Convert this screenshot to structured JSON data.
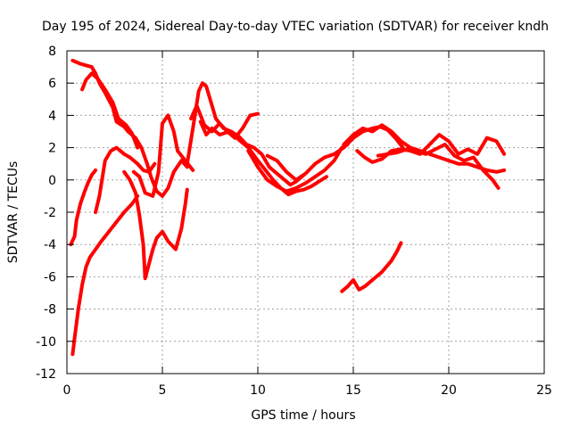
{
  "chart_data": {
    "type": "line",
    "title": "Day 195 of 2024, Sidereal Day-to-day VTEC variation (SDTVAR) for receiver kndh",
    "xlabel": "GPS time / hours",
    "ylabel": "SDTVAR / TECUs",
    "xlim": [
      0,
      25
    ],
    "ylim": [
      -12,
      8
    ],
    "xticks": [
      0,
      5,
      10,
      15,
      20,
      25
    ],
    "yticks": [
      -12,
      -10,
      -8,
      -6,
      -4,
      -2,
      0,
      2,
      4,
      6,
      8
    ],
    "xtick_labels": [
      "0",
      "5",
      "10",
      "15",
      "20",
      "25"
    ],
    "ytick_labels": [
      "-12",
      "-10",
      "-8",
      "-6",
      "-4",
      "-2",
      "0",
      "2",
      "4",
      "6",
      "8"
    ],
    "grid": true,
    "legend": "none",
    "marker": "plus",
    "color": "#ff0000",
    "series": [
      {
        "name": "track-1",
        "x": [
          0.3,
          0.7,
          1.0,
          1.3,
          1.5,
          1.7,
          2.0,
          2.4,
          2.6,
          3.0,
          3.2,
          3.6,
          3.9,
          4.2,
          4.4,
          4.7,
          5.0,
          5.3,
          5.6,
          6.0,
          6.3
        ],
        "y": [
          7.4,
          7.2,
          7.1,
          7.0,
          6.6,
          6.0,
          5.4,
          4.5,
          3.6,
          3.3,
          3.0,
          2.6,
          2.0,
          1.0,
          0.2,
          -0.7,
          -1.0,
          -0.5,
          0.5,
          1.2,
          0.8
        ]
      },
      {
        "name": "track-2",
        "x": [
          0.8,
          1.0,
          1.3,
          1.6,
          2.0,
          2.4,
          2.7,
          3.1,
          3.4,
          3.7
        ],
        "y": [
          5.6,
          6.2,
          6.6,
          6.3,
          5.6,
          4.8,
          3.8,
          3.4,
          2.9,
          2.0
        ]
      },
      {
        "name": "track-3",
        "x": [
          0.2,
          0.4,
          0.5,
          0.7,
          0.9,
          1.1,
          1.3,
          1.5
        ],
        "y": [
          -4.0,
          -3.5,
          -2.5,
          -1.5,
          -0.8,
          -0.2,
          0.3,
          0.6
        ]
      },
      {
        "name": "track-4",
        "x": [
          0.3,
          0.4,
          0.6,
          0.8,
          1.0,
          1.2,
          1.5,
          1.8,
          2.2,
          2.6,
          3.0,
          3.4,
          3.7
        ],
        "y": [
          -10.8,
          -9.8,
          -8.0,
          -6.5,
          -5.4,
          -4.8,
          -4.3,
          -3.8,
          -3.2,
          -2.6,
          -2.0,
          -1.5,
          -1.0
        ]
      },
      {
        "name": "track-5",
        "x": [
          1.5,
          1.7,
          2.0,
          2.3,
          2.6,
          3.0,
          3.3,
          3.7,
          4.0,
          4.3,
          4.6
        ],
        "y": [
          -2.0,
          -1.0,
          1.2,
          1.8,
          2.0,
          1.6,
          1.4,
          1.0,
          0.6,
          0.5,
          1.0
        ]
      },
      {
        "name": "track-6",
        "x": [
          3.0,
          3.3,
          3.6,
          3.8,
          4.0,
          4.1,
          4.3,
          4.5,
          4.7,
          5.0,
          5.3,
          5.7,
          6.0,
          6.2,
          6.3
        ],
        "y": [
          0.5,
          0.0,
          -0.8,
          -2.2,
          -4.0,
          -6.1,
          -5.2,
          -4.3,
          -3.6,
          -3.2,
          -3.8,
          -4.3,
          -3.0,
          -1.5,
          -0.6
        ]
      },
      {
        "name": "track-7",
        "x": [
          3.5,
          3.8,
          4.1,
          4.5,
          4.8,
          5.0,
          5.3,
          5.6,
          5.8,
          6.2,
          6.6
        ],
        "y": [
          0.5,
          0.2,
          -0.8,
          -1.0,
          0.5,
          3.5,
          4.0,
          3.0,
          1.8,
          1.2,
          0.6
        ]
      },
      {
        "name": "track-8",
        "x": [
          6.3,
          6.6,
          6.9,
          7.1,
          7.3,
          7.5,
          7.8,
          8.2,
          8.6,
          9.0,
          9.4,
          9.8,
          10.2,
          10.6,
          11.0,
          11.4,
          11.7,
          12.0,
          12.4
        ],
        "y": [
          1.0,
          3.2,
          5.5,
          6.0,
          5.8,
          5.0,
          3.8,
          3.2,
          3.0,
          2.7,
          2.2,
          2.0,
          1.6,
          0.8,
          0.4,
          0.0,
          -0.3,
          -0.1,
          0.3
        ]
      },
      {
        "name": "track-9",
        "x": [
          6.5,
          6.8,
          7.2,
          7.6,
          8.0,
          8.4,
          8.8,
          9.2,
          9.6,
          10.0
        ],
        "y": [
          3.8,
          4.6,
          3.4,
          3.0,
          3.5,
          3.0,
          2.6,
          3.2,
          4.0,
          4.1
        ]
      },
      {
        "name": "track-10",
        "x": [
          7.0,
          7.3,
          7.6,
          8.0,
          8.5,
          9.0,
          9.5,
          10.0,
          10.4,
          10.8,
          11.2,
          11.6,
          12.0,
          12.4,
          12.8,
          13.2,
          13.6
        ],
        "y": [
          3.6,
          2.8,
          3.2,
          2.8,
          3.0,
          2.5,
          2.0,
          1.2,
          0.6,
          0.0,
          -0.5,
          -0.9,
          -0.7,
          -0.6,
          -0.4,
          -0.1,
          0.2
        ]
      },
      {
        "name": "track-11",
        "x": [
          9.5,
          10.0,
          10.5,
          11.0,
          11.5,
          12.0,
          12.5,
          13.0,
          13.5,
          14.0,
          14.4,
          14.7
        ],
        "y": [
          1.8,
          0.8,
          0.0,
          -0.4,
          -0.7,
          -0.5,
          -0.2,
          0.2,
          0.6,
          1.2,
          2.0,
          2.2
        ]
      },
      {
        "name": "track-12",
        "x": [
          10.5,
          11.0,
          11.5,
          12.0,
          12.5,
          13.0,
          13.5,
          14.0,
          14.5,
          15.0,
          15.5,
          16.0,
          16.4,
          16.8,
          17.2,
          17.6
        ],
        "y": [
          1.5,
          1.2,
          0.5,
          0.0,
          0.4,
          1.0,
          1.4,
          1.6,
          2.0,
          2.6,
          3.0,
          3.2,
          3.3,
          3.1,
          2.6,
          2.0
        ]
      },
      {
        "name": "track-13",
        "x": [
          14.5,
          15.0,
          15.5,
          16.0,
          16.5,
          17.0,
          17.5,
          18.0,
          18.5,
          19.0,
          19.5,
          20.0,
          20.5,
          21.0,
          21.5,
          22.0,
          22.5,
          22.9
        ],
        "y": [
          2.2,
          2.8,
          3.2,
          3.0,
          3.4,
          3.0,
          2.4,
          2.0,
          1.8,
          1.6,
          1.4,
          1.2,
          1.0,
          1.0,
          0.8,
          0.6,
          0.5,
          0.6
        ]
      },
      {
        "name": "track-14",
        "x": [
          15.2,
          15.6,
          16.0,
          16.5,
          17.0,
          17.5,
          18.0,
          18.5,
          19.0,
          19.5,
          20.0,
          20.5,
          21.0,
          21.5,
          22.0,
          22.5,
          22.9
        ],
        "y": [
          1.8,
          1.4,
          1.1,
          1.3,
          1.8,
          1.9,
          1.8,
          1.6,
          2.2,
          2.8,
          2.4,
          1.6,
          1.9,
          1.6,
          2.6,
          2.4,
          1.6
        ]
      },
      {
        "name": "track-15",
        "x": [
          16.3,
          16.8,
          17.3,
          17.8,
          18.3,
          18.8,
          19.3,
          19.8,
          20.3,
          20.8,
          21.3,
          21.8,
          22.3,
          22.6
        ],
        "y": [
          1.5,
          1.6,
          1.7,
          1.9,
          1.8,
          1.6,
          1.9,
          2.2,
          1.5,
          1.2,
          1.4,
          0.6,
          0.0,
          -0.5
        ]
      },
      {
        "name": "track-16",
        "x": [
          14.4,
          14.7,
          15.0,
          15.3,
          15.6,
          16.0,
          16.5,
          17.0,
          17.3,
          17.5
        ],
        "y": [
          -6.9,
          -6.6,
          -6.2,
          -6.8,
          -6.6,
          -6.2,
          -5.7,
          -5.0,
          -4.4,
          -3.9
        ]
      }
    ]
  }
}
